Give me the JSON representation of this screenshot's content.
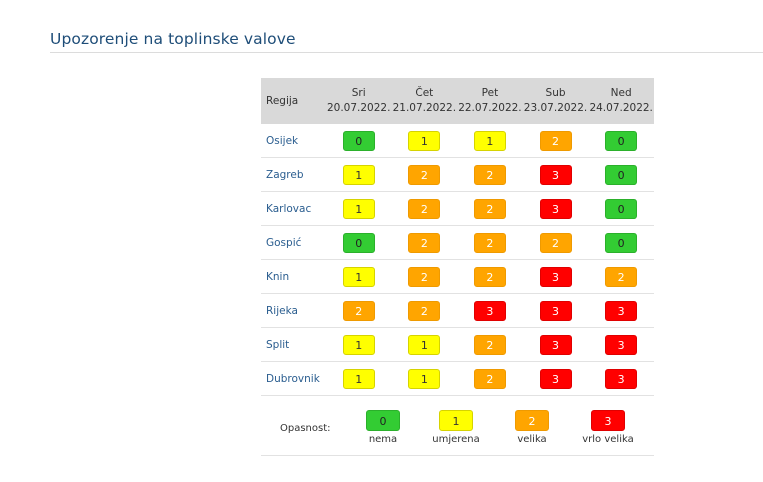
{
  "title": "Upozorenje na toplinske valove",
  "table": {
    "region_header": "Regija",
    "days": [
      {
        "day": "Sri",
        "date": "20.07.2022."
      },
      {
        "day": "Čet",
        "date": "21.07.2022."
      },
      {
        "day": "Pet",
        "date": "22.07.2022."
      },
      {
        "day": "Sub",
        "date": "23.07.2022."
      },
      {
        "day": "Ned",
        "date": "24.07.2022."
      }
    ],
    "rows": [
      {
        "region": "Osijek",
        "levels": [
          "0",
          "1",
          "1",
          "2",
          "0"
        ]
      },
      {
        "region": "Zagreb",
        "levels": [
          "1",
          "2",
          "2",
          "3",
          "0"
        ]
      },
      {
        "region": "Karlovac",
        "levels": [
          "1",
          "2",
          "2",
          "3",
          "0"
        ]
      },
      {
        "region": "Gospić",
        "levels": [
          "0",
          "2",
          "2",
          "2",
          "0"
        ]
      },
      {
        "region": "Knin",
        "levels": [
          "1",
          "2",
          "2",
          "3",
          "2"
        ]
      },
      {
        "region": "Rijeka",
        "levels": [
          "2",
          "2",
          "3",
          "3",
          "3"
        ]
      },
      {
        "region": "Split",
        "levels": [
          "1",
          "1",
          "2",
          "3",
          "3"
        ]
      },
      {
        "region": "Dubrovnik",
        "levels": [
          "1",
          "1",
          "2",
          "3",
          "3"
        ]
      }
    ]
  },
  "legend": {
    "label": "Opasnost:",
    "items": [
      {
        "level": "0",
        "text": "nema"
      },
      {
        "level": "1",
        "text": "umjerena"
      },
      {
        "level": "2",
        "text": "velika"
      },
      {
        "level": "3",
        "text": "vrlo velika"
      }
    ]
  },
  "colors": {
    "level_0": "#33cc33",
    "level_1": "#ffff00",
    "level_2": "#ffa500",
    "level_3": "#ff0000",
    "title": "#1e4d78",
    "region_link": "#2a5d8f"
  }
}
